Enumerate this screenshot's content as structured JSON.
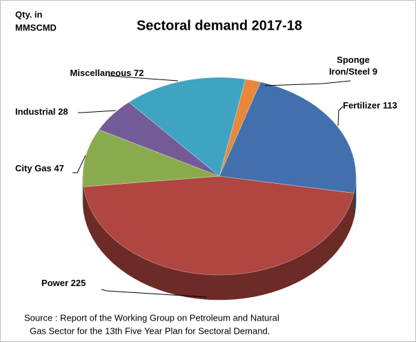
{
  "chart_data": {
    "type": "pie3d",
    "title": "Sectoral demand  2017-18",
    "unit_label": [
      "Qty. in",
      "MMSCMD"
    ],
    "categories": [
      "Sponge Iron/Steel",
      "Fertilizer",
      "Power",
      "City Gas",
      "Industrial",
      "Miscellaneous"
    ],
    "values": [
      9,
      113,
      225,
      47,
      28,
      72
    ],
    "colors": [
      "#e8883a",
      "#4170ad",
      "#b04641",
      "#8aab4d",
      "#725b97",
      "#3fa3c2"
    ],
    "source": [
      "Source : Report of the Working Group on Petroleum and Natural",
      "Gas Sector for the 13th Five Year Plan for Sectoral Demand."
    ]
  }
}
